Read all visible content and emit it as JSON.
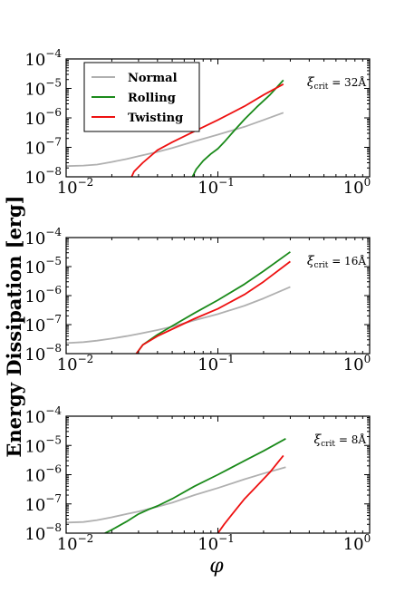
{
  "figure": {
    "ylabel": "Energy Dissipation [erg]",
    "xlabel": "φ"
  },
  "colors": {
    "Normal": "#b0b0b0",
    "Rolling": "#1a8a1a",
    "Twisting": "#ee1111"
  },
  "chart_data": [
    {
      "type": "line",
      "xscale": "log",
      "yscale": "log",
      "xlim": [
        0.01,
        1
      ],
      "ylim": [
        1e-08,
        0.0001
      ],
      "xticks": [
        0.01,
        0.1,
        1
      ],
      "yticks": [
        1e-08,
        1e-07,
        1e-06,
        1e-05,
        0.0001
      ],
      "annotation": {
        "symbol": "ξ",
        "subscript": "crit",
        "text": "= 32Å"
      },
      "legend": {
        "position": "top-left",
        "entries": [
          "Normal",
          "Rolling",
          "Twisting"
        ]
      },
      "series": [
        {
          "name": "Normal",
          "x": [
            0.01,
            0.013,
            0.016,
            0.02,
            0.025,
            0.03,
            0.04,
            0.05,
            0.07,
            0.1,
            0.15,
            0.2,
            0.27
          ],
          "y": [
            2.3e-08,
            2.4e-08,
            2.6e-08,
            3.2e-08,
            4e-08,
            5e-08,
            7e-08,
            9.5e-08,
            1.6e-07,
            2.7e-07,
            5e-07,
            8.5e-07,
            1.5e-06
          ]
        },
        {
          "name": "Rolling",
          "x": [
            0.068,
            0.072,
            0.08,
            0.09,
            0.1,
            0.11,
            0.13,
            0.15,
            0.18,
            0.22,
            0.27
          ],
          "y": [
            1e-08,
            1.8e-08,
            3.5e-08,
            6e-08,
            9e-08,
            1.5e-07,
            4e-07,
            9e-07,
            2.3e-06,
            6e-06,
            1.9e-05
          ]
        },
        {
          "name": "Twisting",
          "x": [
            0.027,
            0.028,
            0.032,
            0.04,
            0.05,
            0.07,
            0.1,
            0.15,
            0.2,
            0.27
          ],
          "y": [
            1e-08,
            1.5e-08,
            3e-08,
            8e-08,
            1.5e-07,
            3.5e-07,
            8.5e-07,
            2.5e-06,
            6e-06,
            1.4e-05
          ]
        }
      ]
    },
    {
      "type": "line",
      "xscale": "log",
      "yscale": "log",
      "xlim": [
        0.01,
        1
      ],
      "ylim": [
        1e-08,
        0.0001
      ],
      "xticks": [
        0.01,
        0.1,
        1
      ],
      "yticks": [
        1e-08,
        1e-07,
        1e-06,
        1e-05,
        0.0001
      ],
      "annotation": {
        "symbol": "ξ",
        "subscript": "crit",
        "text": "= 16Å"
      },
      "series": [
        {
          "name": "Normal",
          "x": [
            0.01,
            0.013,
            0.016,
            0.02,
            0.025,
            0.03,
            0.04,
            0.05,
            0.07,
            0.1,
            0.15,
            0.2,
            0.3
          ],
          "y": [
            2.3e-08,
            2.5e-08,
            2.8e-08,
            3.3e-08,
            4e-08,
            4.8e-08,
            6.5e-08,
            8.5e-08,
            1.4e-07,
            2.3e-07,
            4.5e-07,
            8e-07,
            2e-06
          ]
        },
        {
          "name": "Rolling",
          "x": [
            0.029,
            0.032,
            0.04,
            0.05,
            0.07,
            0.1,
            0.15,
            0.2,
            0.3
          ],
          "y": [
            1e-08,
            2e-08,
            4.5e-08,
            9e-08,
            2.5e-07,
            7e-07,
            2.5e-06,
            7e-06,
            3.2e-05
          ]
        },
        {
          "name": "Twisting",
          "x": [
            0.029,
            0.032,
            0.04,
            0.05,
            0.07,
            0.1,
            0.15,
            0.2,
            0.3
          ],
          "y": [
            1e-08,
            2e-08,
            4e-08,
            7e-08,
            1.6e-07,
            3.5e-07,
            1.1e-06,
            3e-06,
            1.5e-05
          ]
        }
      ]
    },
    {
      "type": "line",
      "xscale": "log",
      "yscale": "log",
      "xlim": [
        0.01,
        1
      ],
      "ylim": [
        1e-08,
        0.0001
      ],
      "xticks": [
        0.01,
        0.1,
        1
      ],
      "yticks": [
        1e-08,
        1e-07,
        1e-06,
        1e-05,
        0.0001
      ],
      "annotation": {
        "symbol": "ξ",
        "subscript": "crit",
        "text": "= 8Å"
      },
      "series": [
        {
          "name": "Normal",
          "x": [
            0.01,
            0.013,
            0.016,
            0.02,
            0.025,
            0.03,
            0.04,
            0.05,
            0.07,
            0.1,
            0.15,
            0.2,
            0.28
          ],
          "y": [
            2.3e-08,
            2.4e-08,
            2.8e-08,
            3.5e-08,
            4.5e-08,
            5.5e-08,
            8e-08,
            1.1e-07,
            2e-07,
            3.5e-07,
            7e-07,
            1.1e-06,
            1.8e-06
          ]
        },
        {
          "name": "Rolling",
          "x": [
            0.018,
            0.02,
            0.025,
            0.03,
            0.035,
            0.04,
            0.05,
            0.07,
            0.1,
            0.15,
            0.2,
            0.28
          ],
          "y": [
            1e-08,
            1.3e-08,
            2.5e-08,
            4.5e-08,
            6.5e-08,
            8.5e-08,
            1.5e-07,
            4e-07,
            1e-06,
            3e-06,
            6.5e-06,
            1.7e-05
          ]
        },
        {
          "name": "Twisting",
          "x": [
            0.1,
            0.11,
            0.13,
            0.15,
            0.18,
            0.22,
            0.27
          ],
          "y": [
            1e-08,
            2e-08,
            6e-08,
            1.5e-07,
            4e-07,
            1.2e-06,
            4.5e-06
          ]
        }
      ]
    }
  ]
}
